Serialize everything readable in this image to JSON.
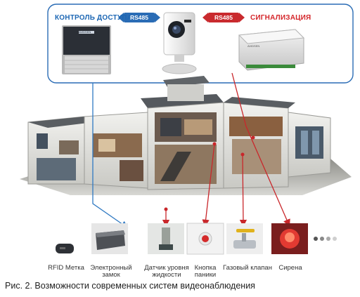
{
  "top_panel": {
    "access_label": "КОНТРОЛЬ ДОСТУПА",
    "alarm_label": "СИГНАЛИЗАЦИЯ",
    "rs_left": "RS485",
    "rs_right": "RS485",
    "panel_brand_left": "AVIDSEN",
    "panel_brand_right": "AVIDSEN",
    "colors": {
      "access": "#1d67b4",
      "alarm": "#d4262a",
      "panel_border": "#2a6cb5"
    }
  },
  "devices": [
    {
      "label": "RFID Метка"
    },
    {
      "label": "Электронный замок"
    },
    {
      "label": "Датчик уровня жидкости"
    },
    {
      "label": "Кнопка паники"
    },
    {
      "label": "Газовый клапан"
    },
    {
      "label": "Сирена"
    }
  ],
  "caption": "Рис. 2. Возможности современных систем видеонаблюдения"
}
